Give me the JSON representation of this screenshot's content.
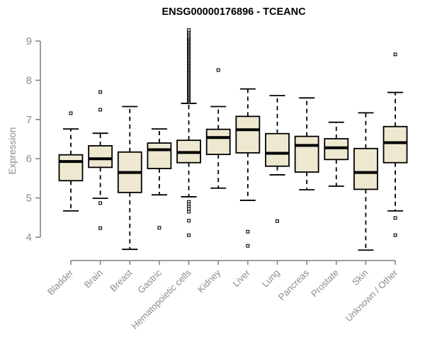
{
  "chart_data": {
    "type": "boxplot",
    "title": "ENSG00000176896 - TCEANC",
    "ylabel": "Expression",
    "xlabel": "",
    "ylim": [
      3.5,
      9.4
    ],
    "yticks": [
      4,
      5,
      6,
      7,
      8,
      9
    ],
    "grid": false,
    "legend": false,
    "colors": {
      "box_fill": "#ede8cf",
      "box_stroke": "#000000",
      "median": "#000000",
      "axis": "#7f7f7f",
      "tick_label": "#8c8c8c",
      "title": "#000000"
    },
    "categories": [
      "Bladder",
      "Brain",
      "Breast",
      "Gastric",
      "Hematopoietic cells",
      "Kidney",
      "Liver",
      "Lung",
      "Pancreas",
      "Prostate",
      "Skin",
      "Unknown / Other"
    ],
    "series": [
      {
        "label": "Bladder",
        "low": 4.67,
        "q1": 5.44,
        "median": 5.93,
        "q3": 6.1,
        "high": 6.76,
        "outliers": [
          7.16
        ]
      },
      {
        "label": "Brain",
        "low": 4.99,
        "q1": 5.78,
        "median": 6.0,
        "q3": 6.33,
        "high": 6.65,
        "outliers": [
          7.7,
          7.25,
          4.87,
          4.23
        ]
      },
      {
        "label": "Breast",
        "low": 3.69,
        "q1": 5.14,
        "median": 5.65,
        "q3": 6.17,
        "high": 7.33,
        "outliers": []
      },
      {
        "label": "Gastric",
        "low": 5.08,
        "q1": 5.75,
        "median": 6.23,
        "q3": 6.4,
        "high": 6.76,
        "outliers": [
          4.24
        ]
      },
      {
        "label": "Hematopoietic cells",
        "low": 5.03,
        "q1": 5.9,
        "median": 6.16,
        "q3": 6.47,
        "high": 7.41,
        "outliers": [
          7.44,
          7.47,
          7.5,
          7.53,
          7.56,
          7.59,
          7.62,
          7.65,
          7.68,
          7.71,
          7.74,
          7.77,
          7.8,
          7.83,
          7.86,
          7.89,
          7.92,
          7.95,
          7.98,
          8.01,
          8.04,
          8.07,
          8.1,
          8.13,
          8.16,
          8.19,
          8.22,
          8.25,
          8.28,
          8.31,
          8.34,
          8.37,
          8.4,
          8.43,
          8.46,
          8.49,
          8.52,
          8.55,
          8.58,
          8.61,
          8.64,
          8.67,
          8.7,
          8.73,
          8.76,
          8.79,
          8.82,
          8.85,
          8.88,
          8.91,
          8.94,
          8.97,
          9.0,
          9.03,
          9.06,
          9.09,
          9.12,
          9.16,
          9.2,
          9.24,
          9.28,
          4.9,
          4.84,
          4.78,
          4.72,
          4.65,
          4.42,
          4.05
        ]
      },
      {
        "label": "Kidney",
        "low": 5.25,
        "q1": 6.11,
        "median": 6.54,
        "q3": 6.75,
        "high": 7.33,
        "outliers": [
          8.26
        ]
      },
      {
        "label": "Liver",
        "low": 4.94,
        "q1": 6.15,
        "median": 6.74,
        "q3": 7.08,
        "high": 7.78,
        "outliers": [
          4.14,
          3.78
        ]
      },
      {
        "label": "Lung",
        "low": 5.59,
        "q1": 5.81,
        "median": 6.14,
        "q3": 6.64,
        "high": 7.61,
        "outliers": [
          4.41
        ]
      },
      {
        "label": "Pancreas",
        "low": 5.21,
        "q1": 5.66,
        "median": 6.34,
        "q3": 6.57,
        "high": 7.55,
        "outliers": []
      },
      {
        "label": "Prostate",
        "low": 5.3,
        "q1": 5.98,
        "median": 6.28,
        "q3": 6.51,
        "high": 6.93,
        "outliers": []
      },
      {
        "label": "Skin",
        "low": 3.67,
        "q1": 5.22,
        "median": 5.65,
        "q3": 6.26,
        "high": 7.17,
        "outliers": []
      },
      {
        "label": "Unknown / Other",
        "low": 4.67,
        "q1": 5.9,
        "median": 6.41,
        "q3": 6.82,
        "high": 7.69,
        "outliers": [
          8.66,
          4.49,
          4.05
        ]
      }
    ]
  }
}
